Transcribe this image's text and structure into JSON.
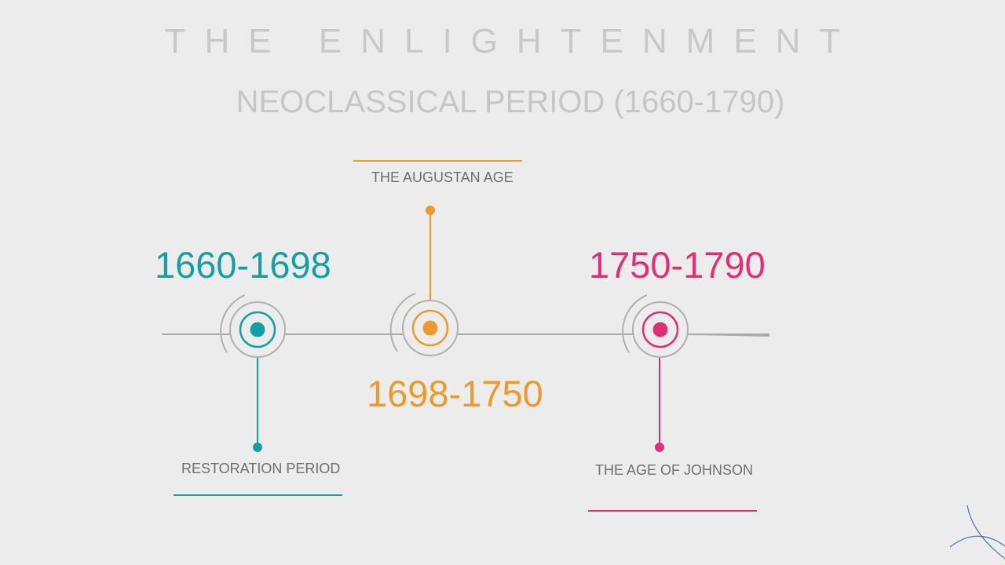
{
  "header": {
    "title": "THE ENLIGHTENMENT",
    "subtitle": "NEOCLASSICAL PERIOD (1660-1790)"
  },
  "periods": [
    {
      "years": "1660-1698",
      "name": "RESTORATION PERIOD",
      "color": "#14a0a2"
    },
    {
      "years": "1698-1750",
      "name": "THE AUGUSTAN AGE",
      "color": "#ed9a2c"
    },
    {
      "years": "1750-1790",
      "name": "THE AGE OF JOHNSON",
      "color": "#e12f77"
    }
  ],
  "colors": {
    "background": "#ececec",
    "timeline": "#aaaaaa",
    "title": "#c8c8c8",
    "label": "#6f6f6f"
  }
}
